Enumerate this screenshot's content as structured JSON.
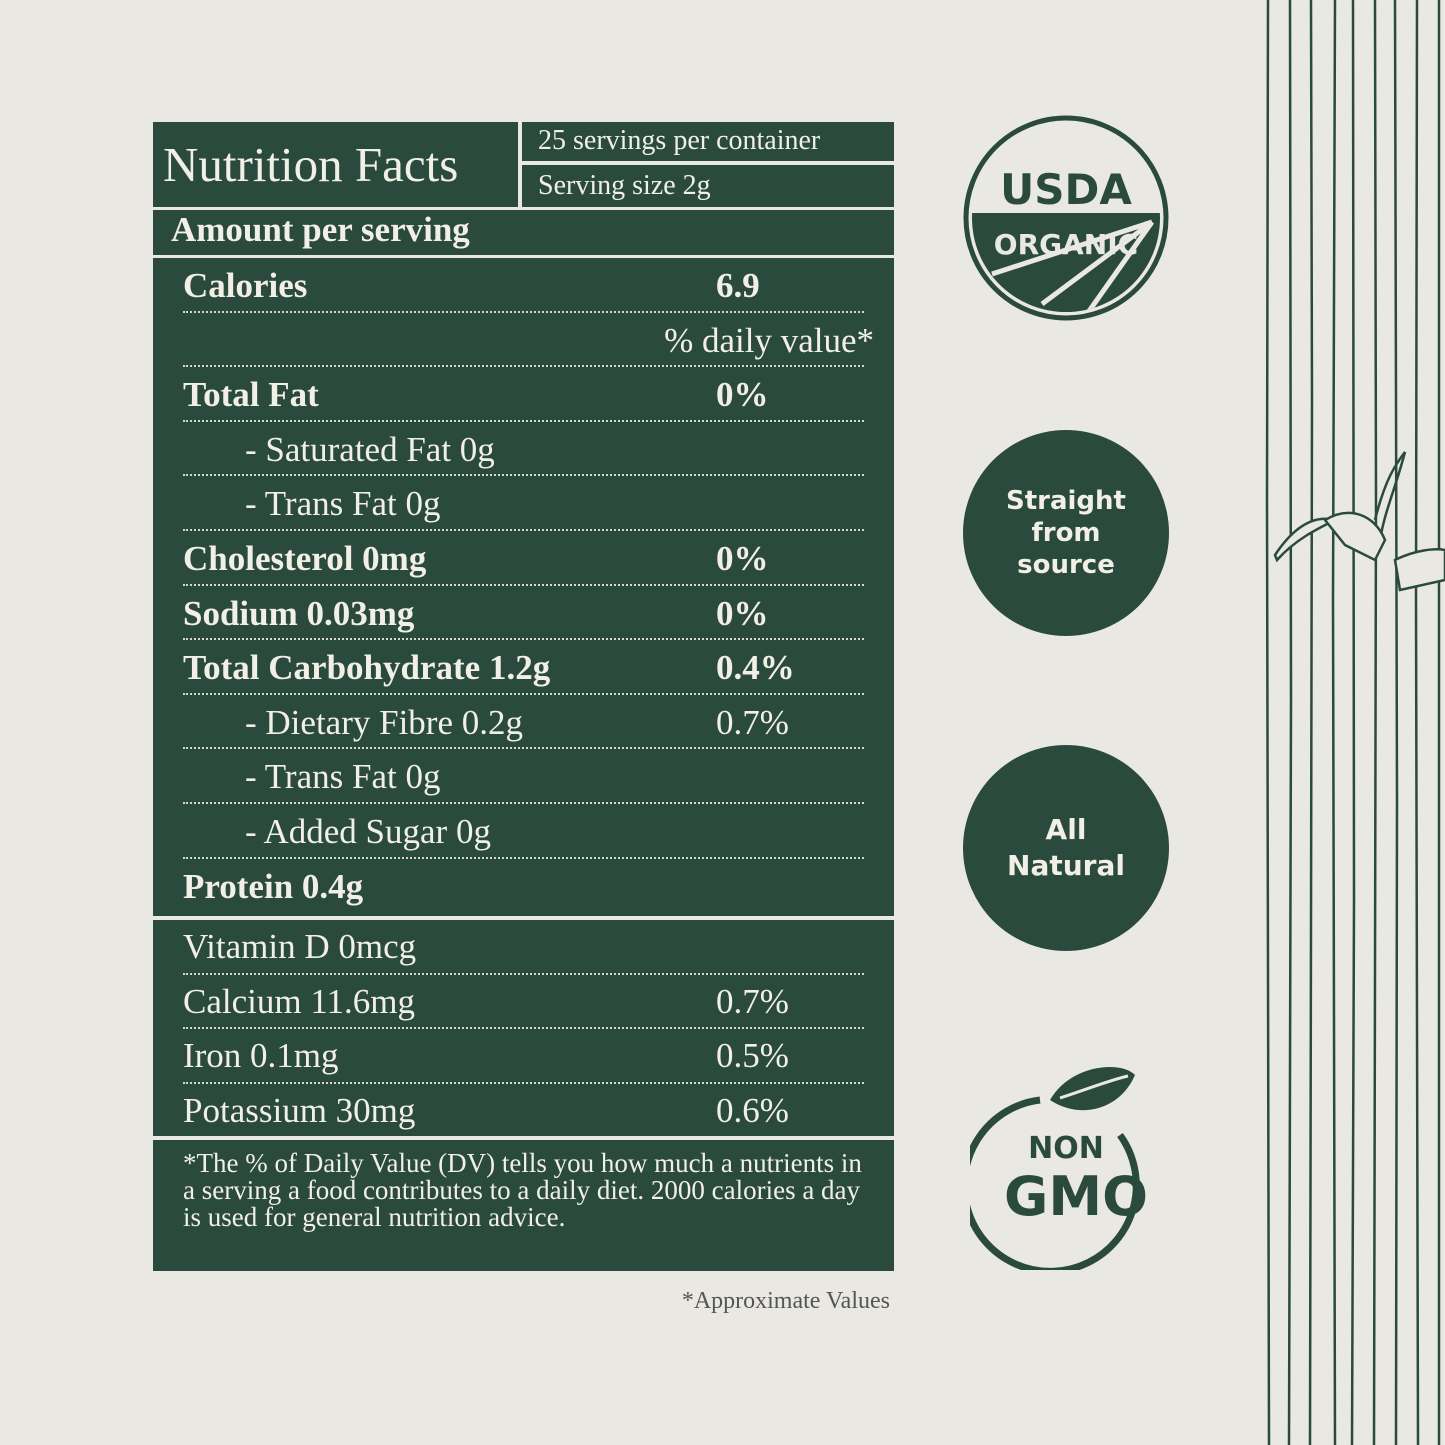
{
  "label": {
    "title": "Nutrition Facts",
    "servings_per_container": "25 servings per container",
    "serving_size": "Serving size 2g",
    "amount_per_serving": "Amount per serving",
    "daily_value_header": "% daily value*",
    "rows": [
      {
        "label": "Calories",
        "value": "6.9",
        "bold": true
      },
      {
        "label": "Total Fat",
        "value": "0%",
        "bold": true
      },
      {
        "label": "- Saturated Fat 0g",
        "value": "",
        "indent": true
      },
      {
        "label": "- Trans Fat 0g",
        "value": "",
        "indent": true
      },
      {
        "label": "Cholesterol 0mg",
        "value": "0%",
        "bold": true
      },
      {
        "label": "Sodium 0.03mg",
        "value": "0%",
        "bold": true
      },
      {
        "label": "Total Carbohydrate 1.2g",
        "value": "0.4%",
        "bold": true
      },
      {
        "label": "- Dietary Fibre 0.2g",
        "value": "0.7%",
        "indent": true
      },
      {
        "label": "- Trans Fat 0g",
        "value": "",
        "indent": true
      },
      {
        "label": "- Added Sugar 0g",
        "value": "",
        "indent": true
      },
      {
        "label": "Protein 0.4g",
        "value": "",
        "bold": true
      }
    ],
    "vitamins": [
      {
        "label": "Vitamin D 0mcg",
        "value": ""
      },
      {
        "label": "Calcium 11.6mg",
        "value": "0.7%"
      },
      {
        "label": "Iron 0.1mg",
        "value": "0.5%"
      },
      {
        "label": "Potassium 30mg",
        "value": "0.6%"
      }
    ],
    "footnote": "*The % of Daily Value (DV) tells you how much a nutrients in a serving a food contributes to a daily diet. 2000 calories a day is used for general nutrition advice.",
    "approximate_note": "*Approximate Values"
  },
  "badges": {
    "usda_top": "USDA",
    "usda_bottom": "ORGANIC",
    "straight": [
      "Straight",
      "from",
      "source"
    ],
    "natural": [
      "All",
      "Natural"
    ],
    "nongmo_top": "NON",
    "nongmo_bottom": "GMO"
  },
  "colors": {
    "brand_green": "#2b4a3e",
    "background": "#e9e8e2",
    "text_light": "#f1efe6"
  }
}
